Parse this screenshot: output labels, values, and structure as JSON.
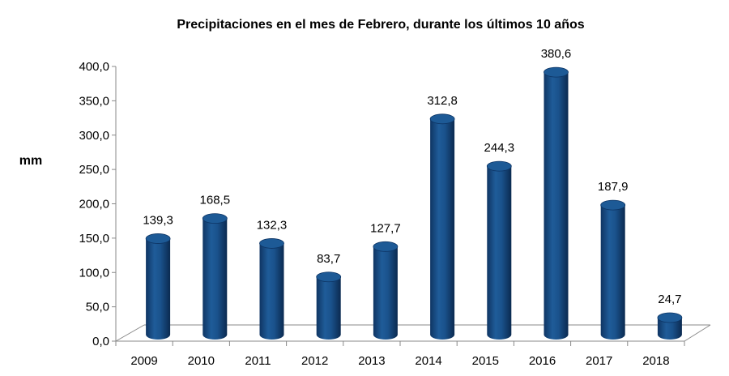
{
  "chart_data": {
    "type": "bar",
    "title": "Precipitaciones en el mes de Febrero, durante  los últimos 10 años",
    "ylabel": "mm",
    "xlabel": "",
    "categories": [
      "2009",
      "2010",
      "2011",
      "2012",
      "2013",
      "2014",
      "2015",
      "2016",
      "2017",
      "2018"
    ],
    "values": [
      139.3,
      168.5,
      132.3,
      83.7,
      127.7,
      312.8,
      244.3,
      380.6,
      187.9,
      24.7
    ],
    "data_labels": [
      "139,3",
      "168,5",
      "132,3",
      "83,7",
      "127,7",
      "312,8",
      "244,3",
      "380,6",
      "187,9",
      "24,7"
    ],
    "ylim": [
      0,
      400
    ],
    "yticks": [
      "0,0",
      "50,0",
      "100,0",
      "150,0",
      "200,0",
      "250,0",
      "300,0",
      "350,0",
      "400,0"
    ],
    "grid": false,
    "legend": "none",
    "style": "3d-cylinder",
    "bar_color": "#1c4f86"
  }
}
